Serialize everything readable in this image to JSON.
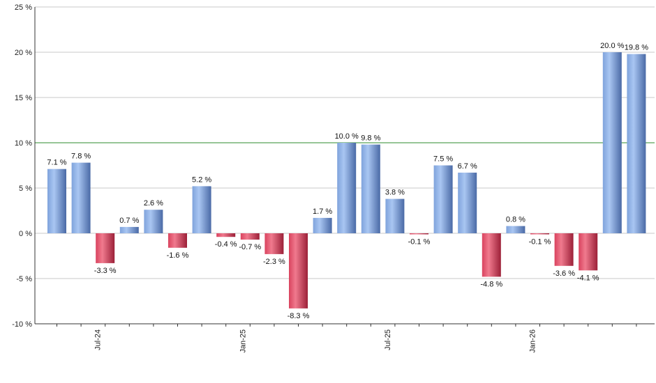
{
  "chart_data": {
    "type": "bar",
    "title": "",
    "xlabel": "",
    "ylabel": "",
    "ylim": [
      -10,
      25
    ],
    "y_ticks": [
      25,
      20,
      15,
      10,
      5,
      0,
      -5,
      -10
    ],
    "y_tick_labels": [
      "25 %",
      "20 %",
      "15 %",
      "10 %",
      "5 %",
      "0 %",
      "-5 %",
      "-10 %"
    ],
    "x_tick_labels": [
      {
        "label": "Jul-24",
        "index": 2
      },
      {
        "label": "Jan-25",
        "index": 8
      },
      {
        "label": "Jul-25",
        "index": 14
      },
      {
        "label": "Jan-26",
        "index": 20
      }
    ],
    "values": [
      7.1,
      7.8,
      -3.3,
      0.7,
      2.6,
      -1.6,
      5.2,
      -0.4,
      -0.7,
      -2.3,
      -8.3,
      1.7,
      10.0,
      9.8,
      3.8,
      -0.1,
      7.5,
      6.7,
      -4.8,
      0.8,
      -0.1,
      -3.6,
      -4.1,
      20.0,
      19.8
    ],
    "value_labels": [
      "7.1 %",
      "7.8 %",
      "-3.3 %",
      "0.7 %",
      "2.6 %",
      "-1.6 %",
      "5.2 %",
      "-0.4 %",
      "-0.7 %",
      "-2.3 %",
      "-8.3 %",
      "1.7 %",
      "10.0 %",
      "9.8 %",
      "3.8 %",
      "-0.1 %",
      "7.5 %",
      "6.7 %",
      "-4.8 %",
      "0.8 %",
      "-0.1 %",
      "-3.6 %",
      "-4.1 %",
      "20.0 %",
      "19.8 %"
    ],
    "reference_line": 10,
    "grid": true,
    "colors": {
      "positive_light": "#a9c6f2",
      "positive_mid": "#7fa3dc",
      "positive_dark": "#4a6aa6",
      "negative_light": "#f07a8e",
      "negative_mid": "#d9435e",
      "negative_dark": "#9c2038",
      "reference_line": "#2e8b2e",
      "grid": "#c8c8c8",
      "axis": "#333333"
    }
  }
}
